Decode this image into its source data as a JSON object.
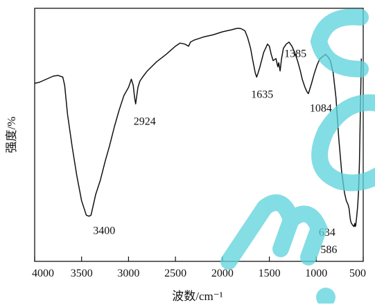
{
  "chart_data": {
    "type": "line",
    "xlabel": "波数/cm⁻¹",
    "ylabel": "强度/%",
    "xlim": [
      4000,
      500
    ],
    "ylim": [
      0,
      100
    ],
    "x_reversed": true,
    "x_ticks": [
      4000,
      3500,
      3000,
      2500,
      2000,
      1500,
      1000,
      500
    ],
    "grid": false,
    "line_color": "#111111",
    "series": [
      {
        "x": [
          4000,
          3950,
          3900,
          3850,
          3800,
          3750,
          3700,
          3680,
          3650,
          3600,
          3550,
          3500,
          3450,
          3420,
          3400,
          3380,
          3350,
          3300,
          3250,
          3200,
          3150,
          3100,
          3050,
          3000,
          2970,
          2950,
          2935,
          2924,
          2915,
          2900,
          2880,
          2850,
          2800,
          2700,
          2600,
          2500,
          2450,
          2400,
          2360,
          2340,
          2300,
          2200,
          2100,
          2000,
          1950,
          1900,
          1860,
          1830,
          1800,
          1760,
          1730,
          1700,
          1680,
          1650,
          1635,
          1620,
          1600,
          1560,
          1520,
          1500,
          1480,
          1460,
          1430,
          1410,
          1400,
          1385,
          1370,
          1350,
          1320,
          1290,
          1260,
          1230,
          1200,
          1170,
          1150,
          1120,
          1100,
          1084,
          1070,
          1050,
          1020,
          990,
          960,
          930,
          900,
          870,
          850,
          820,
          790,
          760,
          730,
          700,
          680,
          660,
          650,
          640,
          634,
          625,
          610,
          600,
          590,
          586,
          580,
          570,
          560,
          550,
          540,
          530,
          520
        ],
        "y": [
          73,
          73.5,
          74.5,
          75.5,
          76.5,
          76.8,
          76,
          72,
          58,
          42,
          28,
          16,
          9,
          8.5,
          9,
          13,
          19,
          26,
          35,
          43,
          52,
          60,
          67,
          71,
          75,
          72,
          66,
          63,
          66,
          71,
          74,
          76,
          79,
          83.5,
          87,
          91,
          92.5,
          92,
          91,
          93,
          94,
          95.5,
          96.5,
          98,
          98.5,
          99,
          99.5,
          99.7,
          99.5,
          98.5,
          95,
          90,
          85,
          78,
          76,
          78,
          81,
          88,
          92,
          91,
          87,
          84,
          85,
          81,
          83,
          79,
          85,
          90,
          92,
          93,
          91,
          88,
          84,
          79,
          75,
          71,
          69,
          68,
          70,
          73,
          78,
          82,
          85,
          86,
          87,
          85.5,
          84,
          78,
          66,
          46,
          30,
          20,
          16,
          14,
          12,
          8,
          6,
          5,
          4,
          3.5,
          5,
          3.5,
          4,
          8,
          13,
          20,
          35,
          60,
          85
        ]
      }
    ],
    "annotations": [
      {
        "text": "3400",
        "x": 3400,
        "y": 8.5
      },
      {
        "text": "2924",
        "x": 2924,
        "y": 63
      },
      {
        "text": "1635",
        "x": 1635,
        "y": 76
      },
      {
        "text": "1385",
        "x": 1385,
        "y": 79
      },
      {
        "text": "1084",
        "x": 1084,
        "y": 68
      },
      {
        "text": "634",
        "x": 634,
        "y": 5
      },
      {
        "text": "586",
        "x": 586,
        "y": 4
      }
    ]
  },
  "watermark": {
    "text": "m.co",
    "color": "#5fd3dc"
  }
}
